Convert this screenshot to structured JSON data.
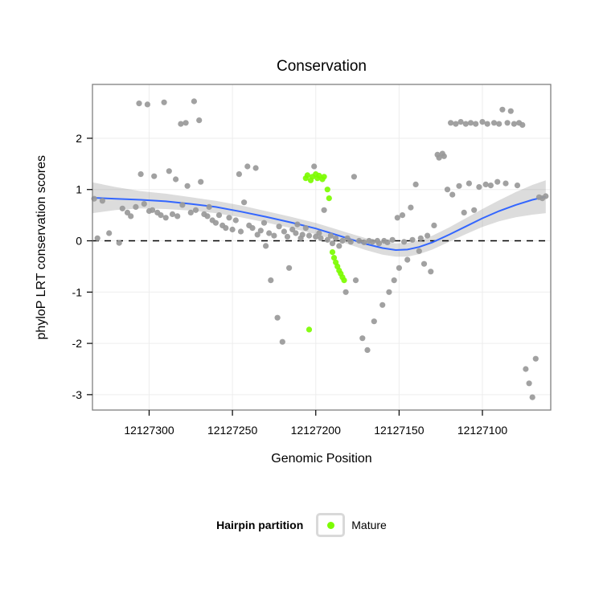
{
  "figure": {
    "title": "Conservation",
    "x_label": "Genomic Position",
    "y_label": "phyloP LRT conservation scores",
    "legend": {
      "title": "Hairpin partition",
      "items": [
        {
          "label": "Mature",
          "color": "#7CFC00"
        }
      ]
    }
  },
  "chart_data": {
    "type": "scatter",
    "title": "Conservation",
    "xlabel": "Genomic Position",
    "ylabel": "phyloP LRT conservation scores",
    "x_axis_reversed": true,
    "xlim": [
      12127334,
      12127059
    ],
    "ylim": [
      -3.3,
      3.05
    ],
    "x_ticks": [
      12127300,
      12127250,
      12127200,
      12127150,
      12127100
    ],
    "y_ticks": [
      -3,
      -2,
      -1,
      0,
      1,
      2
    ],
    "grid": true,
    "colors": {
      "gray_points": "#999999",
      "mature_points": "#7CFC00",
      "smooth_line": "#3366FF",
      "ribbon": "rgba(128,128,128,0.28)",
      "zero_line": "#000000",
      "gridline": "#ededed",
      "panel_border": "#7f7f7f"
    },
    "hline": {
      "y": 0,
      "style": "dashed",
      "color": "#000000"
    },
    "series": [
      {
        "name": "",
        "color": "#999999",
        "points": [
          [
            12127333,
            0.82
          ],
          [
            12127331,
            0.05
          ],
          [
            12127328,
            0.78
          ],
          [
            12127324,
            0.15
          ],
          [
            12127318,
            -0.04
          ],
          [
            12127316,
            0.63
          ],
          [
            12127313,
            0.55
          ],
          [
            12127311,
            0.48
          ],
          [
            12127308,
            0.66
          ],
          [
            12127306,
            2.68
          ],
          [
            12127305,
            1.3
          ],
          [
            12127303,
            0.72
          ],
          [
            12127301,
            2.66
          ],
          [
            12127300,
            0.58
          ],
          [
            12127298,
            0.6
          ],
          [
            12127297,
            1.26
          ],
          [
            12127295,
            0.55
          ],
          [
            12127293,
            0.5
          ],
          [
            12127291,
            2.7
          ],
          [
            12127290,
            0.45
          ],
          [
            12127288,
            1.36
          ],
          [
            12127286,
            0.52
          ],
          [
            12127284,
            1.2
          ],
          [
            12127283,
            0.48
          ],
          [
            12127281,
            2.28
          ],
          [
            12127280,
            0.7
          ],
          [
            12127278,
            2.3
          ],
          [
            12127277,
            1.07
          ],
          [
            12127275,
            0.55
          ],
          [
            12127273,
            2.72
          ],
          [
            12127272,
            0.6
          ],
          [
            12127270,
            2.35
          ],
          [
            12127269,
            1.15
          ],
          [
            12127267,
            0.52
          ],
          [
            12127265,
            0.48
          ],
          [
            12127264,
            0.66
          ],
          [
            12127262,
            0.4
          ],
          [
            12127260,
            0.35
          ],
          [
            12127258,
            0.5
          ],
          [
            12127256,
            0.3
          ],
          [
            12127254,
            0.25
          ],
          [
            12127252,
            0.45
          ],
          [
            12127250,
            0.22
          ],
          [
            12127248,
            0.4
          ],
          [
            12127246,
            1.3
          ],
          [
            12127245,
            0.18
          ],
          [
            12127243,
            0.75
          ],
          [
            12127241,
            1.45
          ],
          [
            12127240,
            0.3
          ],
          [
            12127238,
            0.25
          ],
          [
            12127236,
            1.42
          ],
          [
            12127235,
            0.12
          ],
          [
            12127233,
            0.2
          ],
          [
            12127231,
            0.35
          ],
          [
            12127230,
            -0.1
          ],
          [
            12127228,
            0.15
          ],
          [
            12127227,
            -0.77
          ],
          [
            12127225,
            0.1
          ],
          [
            12127223,
            -1.5
          ],
          [
            12127222,
            0.28
          ],
          [
            12127220,
            -1.97
          ],
          [
            12127219,
            0.18
          ],
          [
            12127217,
            0.08
          ],
          [
            12127216,
            -0.53
          ],
          [
            12127214,
            0.22
          ],
          [
            12127212,
            0.15
          ],
          [
            12127211,
            0.32
          ],
          [
            12127209,
            0.05
          ],
          [
            12127208,
            0.12
          ],
          [
            12127206,
            0.25
          ],
          [
            12127204,
            0.1
          ],
          [
            12127201,
            1.45
          ],
          [
            12127200,
            0.08
          ],
          [
            12127198,
            0.15
          ],
          [
            12127197,
            0.05
          ],
          [
            12127195,
            0.6
          ],
          [
            12127193,
            0.02
          ],
          [
            12127191,
            0.1
          ],
          [
            12127190,
            -0.05
          ],
          [
            12127188,
            0.05
          ],
          [
            12127186,
            -0.1
          ],
          [
            12127184,
            0.0
          ],
          [
            12127182,
            -1.0
          ],
          [
            12127181,
            0.05
          ],
          [
            12127179,
            -0.02
          ],
          [
            12127177,
            1.25
          ],
          [
            12127176,
            -0.77
          ],
          [
            12127174,
            0.0
          ],
          [
            12127172,
            -1.9
          ],
          [
            12127171,
            -0.03
          ],
          [
            12127169,
            -2.13
          ],
          [
            12127168,
            0.0
          ],
          [
            12127166,
            -0.02
          ],
          [
            12127165,
            -1.57
          ],
          [
            12127163,
            0.0
          ],
          [
            12127162,
            -0.05
          ],
          [
            12127160,
            -1.25
          ],
          [
            12127159,
            0.0
          ],
          [
            12127157,
            -0.03
          ],
          [
            12127156,
            -1.0
          ],
          [
            12127154,
            0.02
          ],
          [
            12127153,
            -0.77
          ],
          [
            12127151,
            0.45
          ],
          [
            12127150,
            -0.53
          ],
          [
            12127148,
            0.5
          ],
          [
            12127147,
            -0.02
          ],
          [
            12127145,
            -0.37
          ],
          [
            12127143,
            0.65
          ],
          [
            12127142,
            0.02
          ],
          [
            12127140,
            1.1
          ],
          [
            12127138,
            -0.2
          ],
          [
            12127137,
            0.05
          ],
          [
            12127135,
            -0.45
          ],
          [
            12127133,
            0.1
          ],
          [
            12127131,
            -0.6
          ],
          [
            12127129,
            0.3
          ],
          [
            12127127,
            1.68
          ],
          [
            12127126,
            1.62
          ],
          [
            12127124,
            1.7
          ],
          [
            12127123,
            1.65
          ],
          [
            12127121,
            1.0
          ],
          [
            12127119,
            2.3
          ],
          [
            12127118,
            0.9
          ],
          [
            12127116,
            2.28
          ],
          [
            12127114,
            1.07
          ],
          [
            12127113,
            2.32
          ],
          [
            12127111,
            0.55
          ],
          [
            12127110,
            2.28
          ],
          [
            12127108,
            1.12
          ],
          [
            12127107,
            2.3
          ],
          [
            12127105,
            0.6
          ],
          [
            12127104,
            2.28
          ],
          [
            12127102,
            1.05
          ],
          [
            12127100,
            2.32
          ],
          [
            12127098,
            1.1
          ],
          [
            12127097,
            2.28
          ],
          [
            12127095,
            1.08
          ],
          [
            12127093,
            2.3
          ],
          [
            12127091,
            1.15
          ],
          [
            12127090,
            2.28
          ],
          [
            12127088,
            2.56
          ],
          [
            12127086,
            1.12
          ],
          [
            12127085,
            2.3
          ],
          [
            12127083,
            2.53
          ],
          [
            12127081,
            2.28
          ],
          [
            12127079,
            1.08
          ],
          [
            12127078,
            2.3
          ],
          [
            12127076,
            2.26
          ],
          [
            12127074,
            -2.5
          ],
          [
            12127072,
            -2.78
          ],
          [
            12127070,
            -3.05
          ],
          [
            12127068,
            -2.3
          ],
          [
            12127066,
            0.85
          ],
          [
            12127064,
            0.83
          ],
          [
            12127062,
            0.87
          ]
        ]
      },
      {
        "name": "Mature",
        "color": "#7CFC00",
        "points": [
          [
            12127206,
            1.22
          ],
          [
            12127205,
            1.28
          ],
          [
            12127203,
            1.18
          ],
          [
            12127202,
            1.25
          ],
          [
            12127200,
            1.3
          ],
          [
            12127199,
            1.22
          ],
          [
            12127198,
            1.27
          ],
          [
            12127196,
            1.2
          ],
          [
            12127195,
            1.25
          ],
          [
            12127193,
            1.0
          ],
          [
            12127192,
            0.83
          ],
          [
            12127190,
            -0.22
          ],
          [
            12127189,
            -0.33
          ],
          [
            12127188,
            -0.42
          ],
          [
            12127187,
            -0.5
          ],
          [
            12127186,
            -0.58
          ],
          [
            12127185,
            -0.64
          ],
          [
            12127184,
            -0.71
          ],
          [
            12127183,
            -0.77
          ],
          [
            12127204,
            -1.73
          ]
        ]
      }
    ],
    "smooth": {
      "color": "#3366FF",
      "points": [
        [
          12127334,
          0.84,
          0.54,
          1.14
        ],
        [
          12127320,
          0.82,
          0.6,
          1.05
        ],
        [
          12127305,
          0.8,
          0.63,
          0.97
        ],
        [
          12127290,
          0.77,
          0.62,
          0.92
        ],
        [
          12127275,
          0.72,
          0.59,
          0.85
        ],
        [
          12127260,
          0.66,
          0.54,
          0.78
        ],
        [
          12127245,
          0.57,
          0.46,
          0.69
        ],
        [
          12127230,
          0.47,
          0.36,
          0.58
        ],
        [
          12127215,
          0.36,
          0.25,
          0.47
        ],
        [
          12127200,
          0.24,
          0.13,
          0.35
        ],
        [
          12127190,
          0.14,
          0.03,
          0.25
        ],
        [
          12127180,
          0.04,
          -0.07,
          0.15
        ],
        [
          12127170,
          -0.06,
          -0.18,
          0.05
        ],
        [
          12127160,
          -0.14,
          -0.27,
          -0.02
        ],
        [
          12127152,
          -0.18,
          -0.31,
          -0.05
        ],
        [
          12127145,
          -0.17,
          -0.31,
          -0.04
        ],
        [
          12127138,
          -0.12,
          -0.26,
          0.01
        ],
        [
          12127130,
          -0.03,
          -0.17,
          0.1
        ],
        [
          12127120,
          0.12,
          -0.02,
          0.26
        ],
        [
          12127110,
          0.28,
          0.13,
          0.44
        ],
        [
          12127100,
          0.44,
          0.27,
          0.62
        ],
        [
          12127090,
          0.58,
          0.38,
          0.79
        ],
        [
          12127080,
          0.7,
          0.46,
          0.95
        ],
        [
          12127070,
          0.8,
          0.51,
          1.09
        ],
        [
          12127062,
          0.86,
          0.54,
          1.18
        ]
      ]
    },
    "legend": {
      "title": "Hairpin partition",
      "position": "bottom",
      "items": [
        "Mature"
      ]
    }
  }
}
